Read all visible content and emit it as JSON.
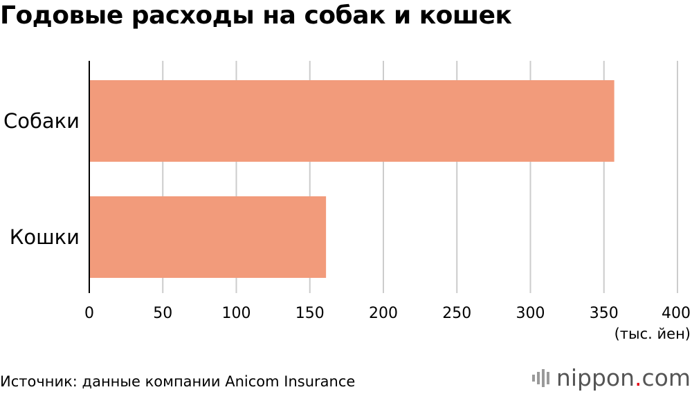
{
  "chart_data": {
    "type": "bar",
    "orientation": "horizontal",
    "title": "Годовые расходы на собак и кошек",
    "categories": [
      "Собаки",
      "Кошки"
    ],
    "values": [
      357,
      161
    ],
    "xlim": [
      0,
      400
    ],
    "xticks": [
      0,
      50,
      100,
      150,
      200,
      250,
      300,
      350,
      400
    ],
    "xlabel": "(тыс. йен)",
    "grid": true,
    "bar_color": "#f29b7b"
  },
  "footer": {
    "source": "Источник: данные компании Anicom Insurance",
    "brand_prefix": "nippon",
    "brand_dot": ".",
    "brand_suffix": "com"
  }
}
